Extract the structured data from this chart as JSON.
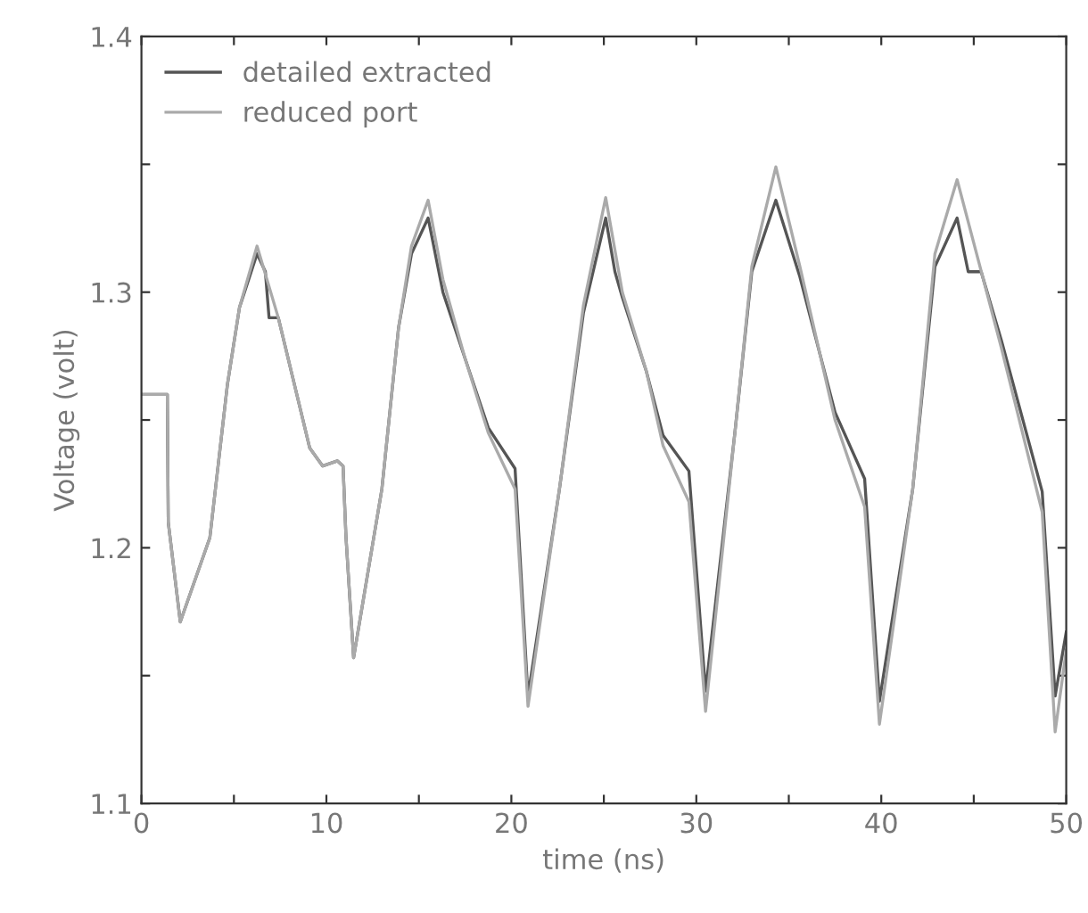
{
  "chart_data": {
    "type": "line",
    "xlabel": "time (ns)",
    "ylabel": "Voltage (volt)",
    "xlim": [
      0,
      50
    ],
    "ylim": [
      1.1,
      1.4
    ],
    "xticks": [
      0,
      {
        "value": 5,
        "label": null
      },
      10,
      {
        "value": 15,
        "label": null
      },
      20,
      {
        "value": 25,
        "label": null
      },
      30,
      {
        "value": 35,
        "label": null
      },
      40,
      {
        "value": 45,
        "label": null
      },
      50
    ],
    "yticks": [
      1.1,
      {
        "value": 1.15,
        "label": null
      },
      1.2,
      {
        "value": 1.25,
        "label": null
      },
      1.3,
      {
        "value": 1.35,
        "label": null
      },
      1.4
    ],
    "grid": false,
    "legend": "top left",
    "marker": "none",
    "line_style": "solid",
    "series": [
      {
        "name": "detailed extracted",
        "color": "#555555",
        "x": [
          0,
          1.4,
          1.45,
          2.1,
          3.7,
          4.65,
          5.3,
          6.25,
          6.7,
          6.9,
          7.4,
          9.1,
          9.8,
          10.6,
          10.9,
          11.06,
          11.47,
          13,
          13.9,
          14.6,
          15.5,
          16.3,
          17.5,
          18.75,
          20.2,
          20.9,
          22.6,
          23.9,
          25.1,
          25.6,
          26,
          27.3,
          28.2,
          29.6,
          30.5,
          32.1,
          33,
          34.3,
          35.6,
          37.5,
          39.1,
          39.9,
          41.7,
          42.9,
          44.1,
          44.7,
          45.4,
          46.5,
          48.7,
          49.4,
          50
        ],
        "values": [
          1.26,
          1.26,
          1.21,
          1.171,
          1.204,
          1.264,
          1.294,
          1.315,
          1.308,
          1.29,
          1.29,
          1.239,
          1.232,
          1.234,
          1.232,
          1.204,
          1.157,
          1.223,
          1.286,
          1.315,
          1.329,
          1.3,
          1.274,
          1.247,
          1.231,
          1.142,
          1.223,
          1.292,
          1.329,
          1.308,
          1.298,
          1.269,
          1.244,
          1.23,
          1.144,
          1.246,
          1.308,
          1.336,
          1.306,
          1.253,
          1.227,
          1.14,
          1.223,
          1.31,
          1.329,
          1.308,
          1.308,
          1.281,
          1.222,
          1.142,
          1.167
        ]
      },
      {
        "name": "reduced port",
        "color": "#aaaaaa",
        "x": [
          0,
          1.4,
          1.45,
          2.1,
          3.7,
          4.65,
          5.3,
          6.25,
          7.4,
          9.1,
          9.8,
          10.6,
          10.9,
          11.06,
          11.47,
          13,
          13.9,
          14.6,
          15.5,
          16.3,
          17.5,
          18.75,
          20.2,
          20.9,
          22.6,
          23.9,
          25.1,
          26,
          27.3,
          28.2,
          29.6,
          30.5,
          32.1,
          33,
          34.3,
          35.6,
          37.5,
          39.1,
          39.9,
          41.7,
          42.9,
          44.1,
          46.5,
          48.7,
          49.4,
          50
        ],
        "values": [
          1.26,
          1.26,
          1.21,
          1.171,
          1.204,
          1.264,
          1.294,
          1.318,
          1.29,
          1.239,
          1.232,
          1.234,
          1.232,
          1.204,
          1.157,
          1.223,
          1.286,
          1.318,
          1.336,
          1.305,
          1.274,
          1.245,
          1.223,
          1.138,
          1.223,
          1.295,
          1.337,
          1.3,
          1.269,
          1.24,
          1.218,
          1.136,
          1.246,
          1.31,
          1.349,
          1.31,
          1.25,
          1.216,
          1.131,
          1.223,
          1.315,
          1.344,
          1.278,
          1.214,
          1.128,
          1.16
        ]
      }
    ]
  }
}
